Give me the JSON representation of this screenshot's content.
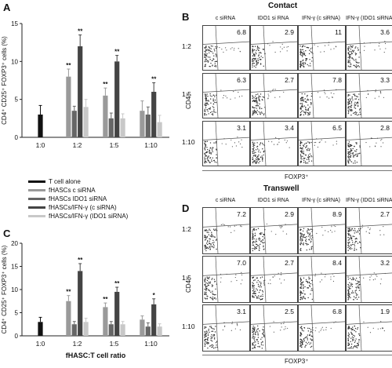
{
  "panel_letters": {
    "a": "A",
    "b": "B",
    "c": "C",
    "d": "D"
  },
  "section_titles": {
    "contact": "Contact",
    "transwell": "Transwell"
  },
  "legend": [
    {
      "label": "T cell alone",
      "color": "#111111"
    },
    {
      "label": "fHASCs c siRNA",
      "color": "#9a9a9a"
    },
    {
      "label": "fHASCs IDO1 siRNA",
      "color": "#666666"
    },
    {
      "label": "fHASCs/IFN-γ (c siRNA)",
      "color": "#444444"
    },
    {
      "label": "fHASCs/IFN-γ (IDO1 siRNA)",
      "color": "#c8c8c8"
    }
  ],
  "flow_columns": [
    "c siRNA",
    "IDO1 si RNA",
    "IFN-γ (c siRNA)",
    "IFN-γ (IDO1 siRNA)"
  ],
  "flow_rows": [
    "1:2",
    "1:5",
    "1:10"
  ],
  "flow_axis": {
    "y": "CD4⁺",
    "x": "FOXP3⁺"
  },
  "flow_values": {
    "contact": [
      [
        "6.8",
        "2.9",
        "11",
        "3.6"
      ],
      [
        "6.3",
        "2.7",
        "7.8",
        "3.3"
      ],
      [
        "3.1",
        "3.4",
        "6.5",
        "2.8"
      ]
    ],
    "transwell": [
      [
        "7.2",
        "2.9",
        "8.9",
        "2.7"
      ],
      [
        "7.0",
        "2.7",
        "8.4",
        "3.2"
      ],
      [
        "3.1",
        "2.5",
        "6.8",
        "1.9"
      ]
    ]
  },
  "chart_data": [
    {
      "panel": "A",
      "type": "bar",
      "ylabel": "CD4⁺ CD25⁺ FOXP3⁺ cells (%)",
      "xlabel": "",
      "ylim": [
        0,
        15
      ],
      "yticks": [
        0,
        5,
        10,
        15
      ],
      "categories": [
        "1:0",
        "1:2",
        "1:5",
        "1:10"
      ],
      "series": [
        {
          "name": "T cell alone",
          "values": [
            3.0,
            null,
            null,
            null
          ],
          "errors": [
            1.2,
            0,
            0,
            0
          ]
        },
        {
          "name": "fHASCs c siRNA",
          "values": [
            null,
            8.0,
            5.5,
            3.5
          ],
          "errors": [
            0,
            1.0,
            1.0,
            1.3
          ]
        },
        {
          "name": "fHASCs IDO1 siRNA",
          "values": [
            null,
            3.5,
            2.5,
            3.0
          ],
          "errors": [
            0,
            0.6,
            0.7,
            1.0
          ]
        },
        {
          "name": "fHASCs/IFN-γ (c siRNA)",
          "values": [
            null,
            12.0,
            10.0,
            6.0
          ],
          "errors": [
            0,
            1.5,
            0.8,
            1.2
          ]
        },
        {
          "name": "fHASCs/IFN-γ (IDO1 siRNA)",
          "values": [
            null,
            4.0,
            2.5,
            2.0
          ],
          "errors": [
            0,
            1.0,
            0.6,
            0.9
          ]
        }
      ],
      "significance": [
        {
          "series": 1,
          "category": 1,
          "text": "**"
        },
        {
          "series": 3,
          "category": 1,
          "text": "**"
        },
        {
          "series": 1,
          "category": 2,
          "text": "**"
        },
        {
          "series": 3,
          "category": 2,
          "text": "**"
        },
        {
          "series": 3,
          "category": 3,
          "text": "**"
        }
      ]
    },
    {
      "panel": "C",
      "type": "bar",
      "ylabel": "CD4⁺ CD25⁺ FOXP3⁺ cells (%)",
      "xlabel": "fHASC:T cell ratio",
      "ylim": [
        0,
        20
      ],
      "yticks": [
        0,
        5,
        10,
        15,
        20
      ],
      "categories": [
        "1:0",
        "1:2",
        "1:5",
        "1:10"
      ],
      "series": [
        {
          "name": "T cell alone",
          "values": [
            3.0,
            null,
            null,
            null
          ],
          "errors": [
            1.0,
            0,
            0,
            0
          ]
        },
        {
          "name": "fHASCs c siRNA",
          "values": [
            null,
            7.5,
            6.2,
            3.5
          ],
          "errors": [
            0,
            1.2,
            0.9,
            0.8
          ]
        },
        {
          "name": "fHASCs IDO1 siRNA",
          "values": [
            null,
            2.5,
            2.5,
            2.0
          ],
          "errors": [
            0,
            0.6,
            0.6,
            0.8
          ]
        },
        {
          "name": "fHASCs/IFN-γ (c siRNA)",
          "values": [
            null,
            14.0,
            9.5,
            6.8
          ],
          "errors": [
            0,
            1.6,
            1.0,
            1.2
          ]
        },
        {
          "name": "fHASCs/IFN-γ (IDO1 siRNA)",
          "values": [
            null,
            3.0,
            2.5,
            2.0
          ],
          "errors": [
            0,
            0.8,
            0.6,
            0.6
          ]
        }
      ],
      "significance": [
        {
          "series": 1,
          "category": 1,
          "text": "**"
        },
        {
          "series": 3,
          "category": 1,
          "text": "**"
        },
        {
          "series": 1,
          "category": 2,
          "text": "**"
        },
        {
          "series": 3,
          "category": 2,
          "text": "**"
        },
        {
          "series": 3,
          "category": 3,
          "text": "*"
        }
      ]
    }
  ]
}
